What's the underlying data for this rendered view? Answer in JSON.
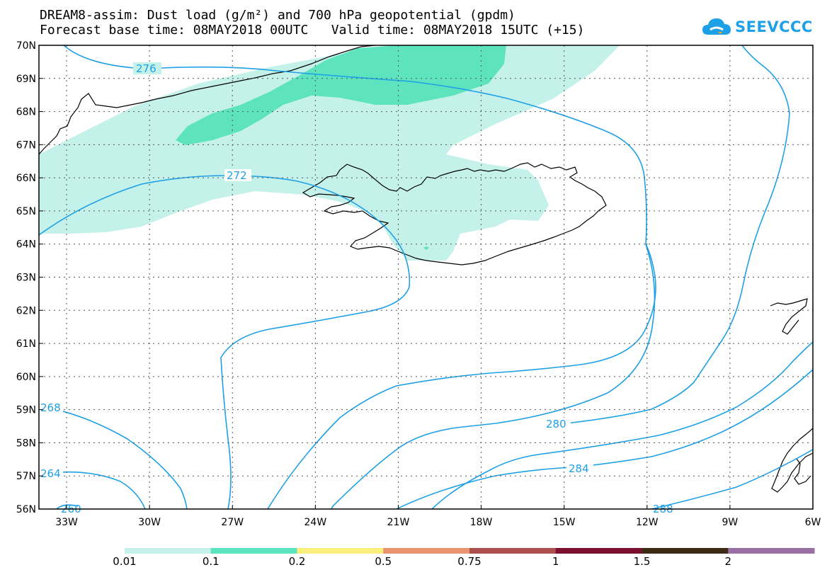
{
  "header": {
    "title_line1": "DREAM8-assim: Dust load (g/m²) and 700 hPa geopotential (gpdm)",
    "title_line2": "Forecast base time: 08MAY2018 00UTC   Valid time: 08MAY2018 15UTC (+15)"
  },
  "logo": {
    "text": "SEEVCCC",
    "icon": "cloud-icon",
    "color": "#1ea0e6"
  },
  "map": {
    "lat_range": [
      56,
      70
    ],
    "lon_range": [
      -34,
      -6
    ],
    "lat_labels": [
      "70N",
      "69N",
      "68N",
      "67N",
      "66N",
      "65N",
      "64N",
      "63N",
      "62N",
      "61N",
      "60N",
      "59N",
      "58N",
      "57N",
      "56N"
    ],
    "lon_labels": [
      "33W",
      "30W",
      "27W",
      "24W",
      "21W",
      "18W",
      "15W",
      "12W",
      "9W",
      "6W"
    ],
    "contour_labels": [
      "276",
      "272",
      "268",
      "264",
      "260",
      "280",
      "284",
      "288"
    ],
    "contour_color": "#1ea0e6",
    "dust_colors": [
      "#c4f2ea",
      "#5ee3bf"
    ]
  },
  "colorbar": {
    "colors": [
      "#c4f2ea",
      "#5ee3bf",
      "#fbee7d",
      "#e8956f",
      "#af5050",
      "#7d1030",
      "#3d2b18",
      "#9a70a4"
    ],
    "labels": [
      "0.01",
      "0.1",
      "0.2",
      "0.5",
      "0.75",
      "1",
      "1.5",
      "2"
    ]
  }
}
